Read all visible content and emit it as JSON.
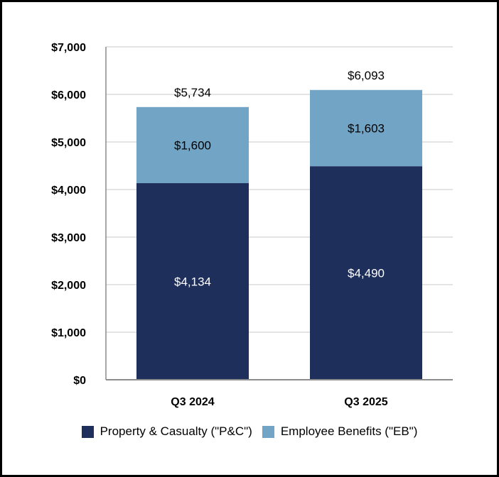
{
  "chart_data": {
    "type": "bar",
    "stacked": true,
    "categories": [
      "Q3 2024",
      "Q3 2025"
    ],
    "series": [
      {
        "name": "Property & Casualty (\"P&C\")",
        "values": [
          4134,
          4490
        ],
        "labels": [
          "$4,134",
          "$4,490"
        ],
        "color": "#1f2f5c",
        "label_color": "#ffffff"
      },
      {
        "name": "Employee Benefits (\"EB\")",
        "values": [
          1600,
          1603
        ],
        "labels": [
          "$1,600",
          "$1,603"
        ],
        "color": "#71a4c5",
        "label_color": "#000000"
      }
    ],
    "totals": [
      5734,
      6093
    ],
    "total_labels": [
      "$5,734",
      "$6,093"
    ],
    "ylim": [
      0,
      7000
    ],
    "yticks": [
      0,
      1000,
      2000,
      3000,
      4000,
      5000,
      6000,
      7000
    ],
    "ytick_labels": [
      "$0",
      "$1,000",
      "$2,000",
      "$3,000",
      "$4,000",
      "$5,000",
      "$6,000",
      "$7,000"
    ],
    "grid": true,
    "legend": "bottom"
  }
}
